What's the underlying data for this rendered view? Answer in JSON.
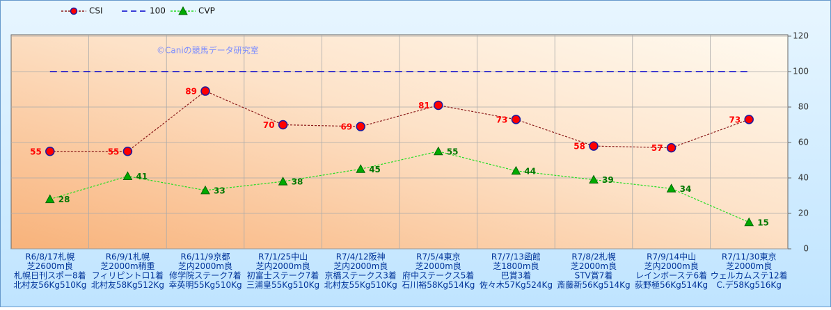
{
  "chart_data": {
    "type": "line",
    "watermark": "©Caniの競馬データ研究室",
    "categories": [
      [
        "R6/8/17札幌",
        "芝2600m良",
        "札幌日刊スポー8着",
        "北村友56Kg510Kg"
      ],
      [
        "R6/9/1札幌",
        "芝2000m稍重",
        "フィリピントロ1着",
        "北村友58Kg512Kg"
      ],
      [
        "R6/11/9京都",
        "芝内2000m良",
        "修学院ステーク7着",
        "幸英明55Kg510Kg"
      ],
      [
        "R7/1/25中山",
        "芝内2000m良",
        "初富士ステーク7着",
        "三浦皇55Kg510Kg"
      ],
      [
        "R7/4/12阪神",
        "芝内2000m良",
        "京橋ステークス3着",
        "北村友55Kg510Kg"
      ],
      [
        "R7/5/4東京",
        "芝2000m良",
        "府中ステークス5着",
        "石川裕58Kg514Kg"
      ],
      [
        "R7/7/13函館",
        "芝1800m良",
        "巴賞3着",
        "佐々木57Kg524Kg"
      ],
      [
        "R7/8/2札幌",
        "芝2000m良",
        "STV賞7着",
        "斎藤新56Kg514Kg"
      ],
      [
        "R7/9/14中山",
        "芝内2000m良",
        "レインボーステ6着",
        "荻野極56Kg514Kg"
      ],
      [
        "R7/11/30東京",
        "芝2000m良",
        "ウェルカムステ12着",
        "C.デ58Kg516Kg"
      ]
    ],
    "series": [
      {
        "name": "CSI",
        "color": "#8b1a1a",
        "marker_color": "#ff0000",
        "marker": "circle",
        "label_color": "#ff0000",
        "label_side": "left",
        "values": [
          55,
          55,
          89,
          70,
          69,
          81,
          73,
          58,
          57,
          73
        ]
      },
      {
        "name": "100",
        "color": "#0000cc",
        "marker": "none",
        "values": [
          100,
          100,
          100,
          100,
          100,
          100,
          100,
          100,
          100,
          100
        ]
      },
      {
        "name": "CVP",
        "color": "#22dd22",
        "marker_color": "#00aa00",
        "marker": "triangle",
        "label_color": "#007700",
        "label_side": "right",
        "values": [
          28,
          41,
          33,
          38,
          45,
          55,
          44,
          39,
          34,
          15
        ]
      }
    ],
    "ylim": [
      0,
      120
    ],
    "yticks": [
      0,
      20,
      40,
      60,
      80,
      100,
      120
    ],
    "grid": true
  }
}
